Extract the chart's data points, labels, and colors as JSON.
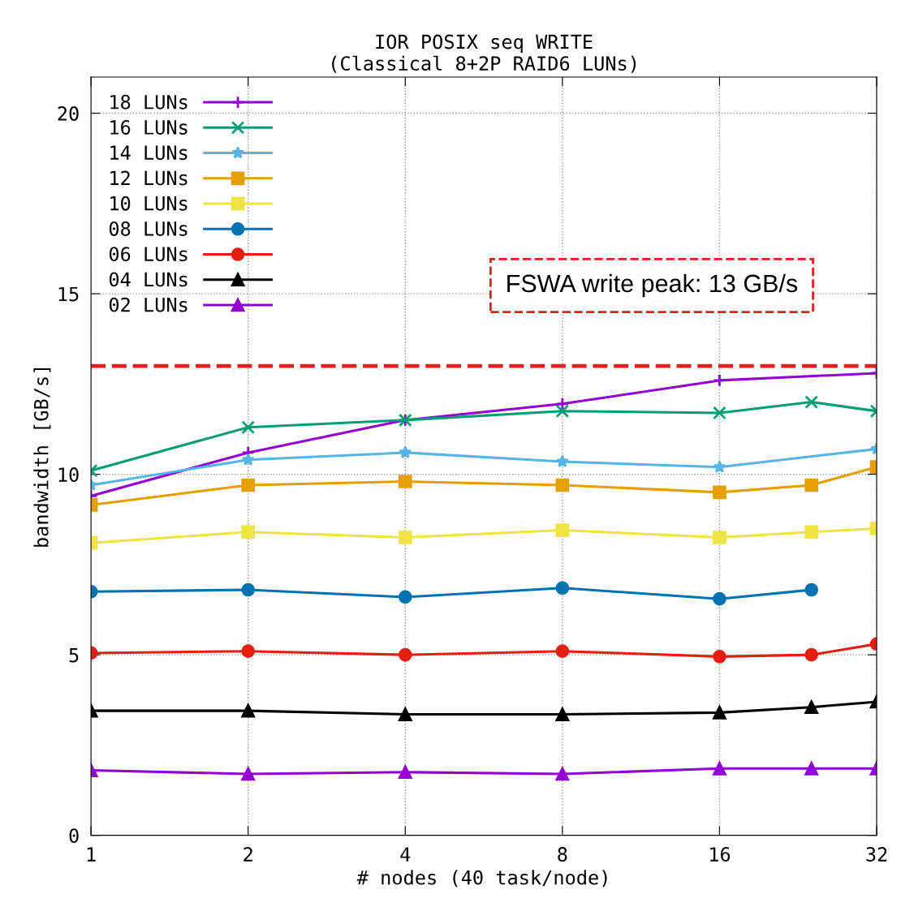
{
  "chart_data": {
    "type": "line",
    "title": "IOR POSIX seq WRITE\n(Classical 8+2P RAID6 LUNs)",
    "xlabel": "# nodes (40 task/node)",
    "ylabel": "bandwidth [GB/s]",
    "log": "x",
    "xlim": [
      1,
      32
    ],
    "xticks": [
      1,
      2,
      4,
      8,
      16,
      32
    ],
    "ylim": [
      0,
      21
    ],
    "yticks": [
      0,
      5,
      10,
      15,
      20
    ],
    "grid": true,
    "legend": "top left",
    "line_style": "solid",
    "ref_lines": [
      {
        "axis": "y",
        "value": 13,
        "color": "#e02020",
        "line_style": "dashed"
      }
    ],
    "annotations": [
      "FSWA write peak: 13 GB/s"
    ],
    "series": [
      {
        "name": "18 LUNs",
        "color": "#9400d3",
        "marker": "plus",
        "x": [
          1,
          2,
          4,
          8,
          16,
          32
        ],
        "values": [
          9.4,
          10.6,
          11.5,
          11.95,
          12.6,
          12.8
        ]
      },
      {
        "name": "16 LUNs",
        "color": "#009e73",
        "marker": "cross",
        "x": [
          1,
          2,
          4,
          8,
          16,
          24,
          32
        ],
        "values": [
          10.1,
          11.3,
          11.5,
          11.75,
          11.7,
          12.0,
          11.75
        ]
      },
      {
        "name": "14 LUNs",
        "color": "#56b4e9",
        "marker": "star",
        "x": [
          1,
          2,
          4,
          8,
          16,
          32
        ],
        "values": [
          9.7,
          10.4,
          10.6,
          10.35,
          10.2,
          10.7
        ]
      },
      {
        "name": "12 LUNs",
        "color": "#e69f00",
        "marker": "square",
        "x": [
          1,
          2,
          4,
          8,
          16,
          24,
          32
        ],
        "values": [
          9.15,
          9.7,
          9.8,
          9.7,
          9.5,
          9.7,
          10.2
        ]
      },
      {
        "name": "10 LUNs",
        "color": "#f0e442",
        "marker": "square",
        "x": [
          1,
          2,
          4,
          8,
          16,
          24,
          32
        ],
        "values": [
          8.1,
          8.4,
          8.25,
          8.45,
          8.25,
          8.4,
          8.5
        ]
      },
      {
        "name": "08 LUNs",
        "color": "#0072b2",
        "marker": "circle",
        "x": [
          1,
          2,
          4,
          8,
          16,
          24
        ],
        "values": [
          6.75,
          6.8,
          6.6,
          6.85,
          6.55,
          6.8
        ]
      },
      {
        "name": "06 LUNs",
        "color": "#e51e10",
        "marker": "circle",
        "x": [
          1,
          2,
          4,
          8,
          16,
          24,
          32
        ],
        "values": [
          5.05,
          5.1,
          5.0,
          5.1,
          4.95,
          5.0,
          5.3
        ]
      },
      {
        "name": "04 LUNs",
        "color": "#000000",
        "marker": "triangle",
        "x": [
          1,
          2,
          4,
          8,
          16,
          24,
          32
        ],
        "values": [
          3.45,
          3.45,
          3.35,
          3.35,
          3.4,
          3.55,
          3.7
        ]
      },
      {
        "name": "02 LUNs",
        "color": "#9400d3",
        "marker": "triangle",
        "x": [
          1,
          2,
          4,
          8,
          16,
          24,
          32
        ],
        "values": [
          1.8,
          1.7,
          1.75,
          1.7,
          1.85,
          1.85,
          1.85
        ]
      }
    ]
  }
}
